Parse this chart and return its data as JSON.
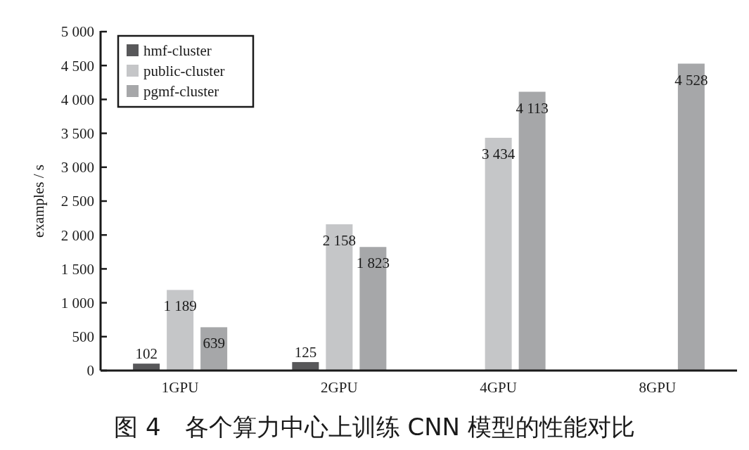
{
  "chart_data": {
    "type": "bar",
    "title": "图 4　各个算力中心上训练 CNN 模型的性能对比",
    "ylabel": "examples / s",
    "categories": [
      "1GPU",
      "2GPU",
      "4GPU",
      "8GPU"
    ],
    "series": [
      {
        "name": "hmf-cluster",
        "color": "#58585a",
        "values": [
          102,
          125,
          null,
          null
        ],
        "value_labels": [
          "102",
          "125",
          null,
          null
        ]
      },
      {
        "name": "public-cluster",
        "color": "#c5c6c8",
        "values": [
          1189,
          2158,
          3434,
          null
        ],
        "value_labels": [
          "1 189",
          "2 158",
          "3 434",
          null
        ]
      },
      {
        "name": "pgmf-cluster",
        "color": "#a6a7a9",
        "values": [
          639,
          1823,
          4113,
          4528
        ],
        "value_labels": [
          "639",
          "1 823",
          "4 113",
          "4 528"
        ]
      }
    ],
    "ylim": [
      0,
      5000
    ],
    "yticks": [
      0,
      500,
      {
        "value": 1000,
        "label": "1 000"
      },
      {
        "value": 1500,
        "label": "1 500"
      },
      {
        "value": 2000,
        "label": "2 000"
      },
      {
        "value": 2500,
        "label": "2 500"
      },
      {
        "value": 3000,
        "label": "3 000"
      },
      {
        "value": 3500,
        "label": "3 500"
      },
      {
        "value": 4000,
        "label": "4 000"
      },
      {
        "value": 4500,
        "label": "4 500"
      },
      {
        "value": 5000,
        "label": "5 000"
      }
    ],
    "legend": "top left"
  }
}
